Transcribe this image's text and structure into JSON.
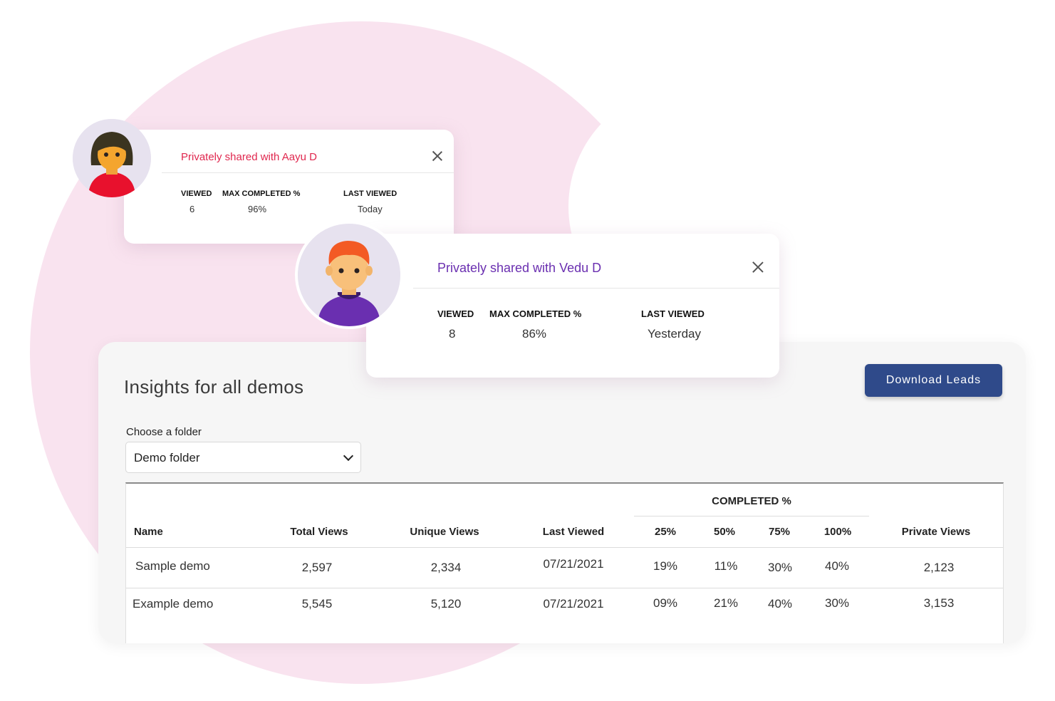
{
  "cards": {
    "aayu": {
      "title": "Privately shared with Aayu D",
      "viewed_label": "VIEWED",
      "max_completed_label": "MAX COMPLETED %",
      "last_viewed_label": "LAST VIEWED",
      "viewed": "6",
      "max_completed": "96%",
      "last_viewed": "Today",
      "avatar_color": "#e8112d"
    },
    "vedu": {
      "title": "Privately shared with Vedu D",
      "viewed_label": "VIEWED",
      "max_completed_label": "MAX COMPLETED %",
      "last_viewed_label": "LAST VIEWED",
      "viewed": "8",
      "max_completed": "86%",
      "last_viewed": "Yesterday",
      "avatar_color": "#6a2fb0"
    }
  },
  "panel": {
    "title": "Insights for all demos",
    "download_label": "Download Leads",
    "folder_label": "Choose a folder",
    "folder_value": "Demo folder"
  },
  "table": {
    "group_header": "COMPLETED %",
    "headers": {
      "name": "Name",
      "total_views": "Total Views",
      "unique_views": "Unique Views",
      "last_viewed": "Last Viewed",
      "p25": "25%",
      "p50": "50%",
      "p75": "75%",
      "p100": "100%",
      "private_views": "Private Views"
    },
    "rows": [
      {
        "name": "Sample demo",
        "total_views": "2,597",
        "unique_views": "2,334",
        "last_viewed": "07/21/2021",
        "p25": "19%",
        "p50": "11%",
        "p75": "30%",
        "p100": "40%",
        "private_views": "2,123"
      },
      {
        "name": "Example demo",
        "total_views": "5,545",
        "unique_views": "5,120",
        "last_viewed": "07/21/2021",
        "p25": "09%",
        "p50": "21%",
        "p75": "40%",
        "p100": "30%",
        "private_views": "3,153"
      }
    ]
  },
  "colors": {
    "accent_blue": "#2f4a8a",
    "pink_title": "#e0274e",
    "purple_title": "#6a2fb0",
    "background_blob": "#f9e3ef"
  }
}
